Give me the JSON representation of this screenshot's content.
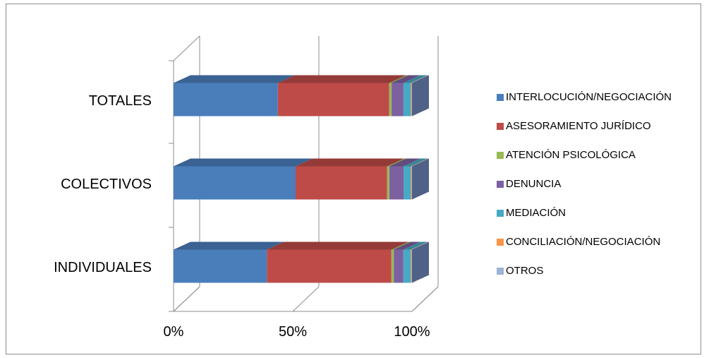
{
  "chart_data": {
    "type": "bar",
    "orientation": "horizontal",
    "stacked": "percent",
    "categories": [
      "INDIVIDUALES",
      "COLECTIVOS",
      "TOTALES"
    ],
    "xticks": [
      "0%",
      "50%",
      "100%"
    ],
    "xlim": [
      0,
      100
    ],
    "grid": "vertical",
    "legend_position": "right",
    "series": [
      {
        "name": "INTERLOCUCIÓN/NEGOCIACIÓN",
        "color": "#4A7EBB",
        "values": [
          39,
          52,
          44
        ]
      },
      {
        "name": "ASESORAMIENTO JURÍDICO",
        "color": "#BE4B48",
        "values": [
          52,
          39,
          47
        ]
      },
      {
        "name": "ATENCIÓN PSICOLÓGICA",
        "color": "#98B954",
        "values": [
          1,
          1,
          1
        ]
      },
      {
        "name": "DENUNCIA",
        "color": "#7D60A0",
        "values": [
          4,
          6,
          5
        ]
      },
      {
        "name": "MEDIACIÓN",
        "color": "#46AAC5",
        "values": [
          3,
          3,
          3
        ]
      },
      {
        "name": "CONCILIACIÓN/NEGOCIACIÓN",
        "color": "#F79646",
        "values": [
          0.3,
          0.3,
          0.3
        ]
      },
      {
        "name": "OTROS",
        "color": "#9DB3D8",
        "values": [
          0.3,
          0.3,
          0.3
        ]
      }
    ]
  }
}
